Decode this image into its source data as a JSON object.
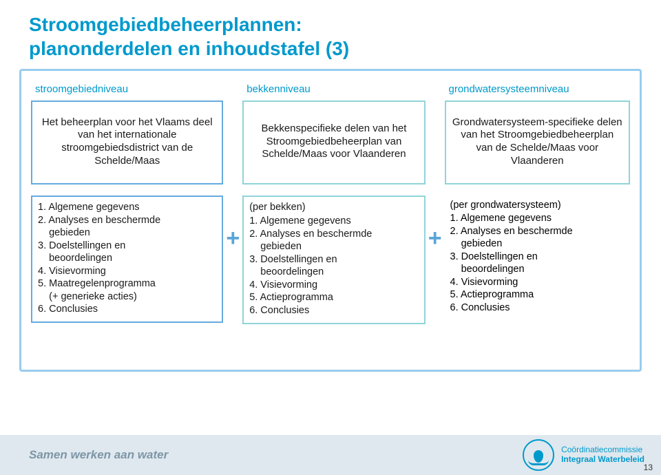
{
  "title_line1": "Stroomgebiedbeheerplannen:",
  "title_line2": "planonderdelen en inhoudstafel (3)",
  "colors": {
    "accent": "#0099cc",
    "outer_border": "#99ccee",
    "box_blue": "#66aadd",
    "box_teal": "#8fd4d9",
    "footer_bg": "#dfe8ee",
    "footer_text": "#7d96a7"
  },
  "columns": {
    "stroom": {
      "level": "stroomgebiedniveau",
      "top": "Het beheerplan voor het Vlaams deel van het internationale stroomgebiedsdistrict van de Schelde/Maas",
      "list_header": "",
      "items": [
        "1. Algemene gegevens",
        "2. Analyses en beschermde gebieden",
        "3. Doelstellingen en beoordelingen",
        "4. Visievorming",
        "5. Maatregelenprogramma (+ generieke acties)",
        "6. Conclusies"
      ]
    },
    "bekken": {
      "level": "bekkenniveau",
      "top": "Bekkenspecifieke delen van het Stroomgebiedbeheerplan van Schelde/Maas voor Vlaanderen",
      "list_header": "(per bekken)",
      "items": [
        "1. Algemene gegevens",
        "2. Analyses en beschermde gebieden",
        "3. Doelstellingen en beoordelingen",
        "4. Visievorming",
        "5. Actieprogramma",
        "6. Conclusies"
      ]
    },
    "grondwater": {
      "level": "grondwatersysteemniveau",
      "top": "Grondwatersysteem-specifieke delen van het Stroomgebiedbeheerplan van de Schelde/Maas voor Vlaanderen",
      "list_header": "(per grondwatersysteem)",
      "items": [
        "1. Algemene gegevens",
        "2. Analyses en beschermde gebieden",
        "3. Doelstellingen en beoordelingen",
        "4. Visievorming",
        "5. Actieprogramma",
        "6. Conclusies"
      ]
    }
  },
  "plus": "+",
  "footer": {
    "tagline": "Samen werken aan water",
    "logo_line1": "Coördinatiecommissie",
    "logo_line2": "Integraal Waterbeleid"
  },
  "page_number": "13"
}
